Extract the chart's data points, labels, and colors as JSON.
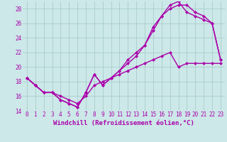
{
  "background_color": "#cce8e8",
  "grid_color": "#aacccc",
  "line_color": "#aa00aa",
  "marker": "D",
  "marker_size": 2.0,
  "line_width": 1.0,
  "xlim": [
    -0.5,
    23.5
  ],
  "ylim": [
    14,
    29
  ],
  "xticks": [
    0,
    1,
    2,
    3,
    4,
    5,
    6,
    7,
    8,
    9,
    10,
    11,
    12,
    13,
    14,
    15,
    16,
    17,
    18,
    19,
    20,
    21,
    22,
    23
  ],
  "yticks": [
    14,
    16,
    18,
    20,
    22,
    24,
    26,
    28
  ],
  "xlabel": "Windchill (Refroidissement éolien,°C)",
  "xlabel_fontsize": 6.5,
  "tick_fontsize": 5.5,
  "line1_x": [
    0,
    1,
    2,
    3,
    4,
    5,
    6,
    7,
    8,
    9,
    10,
    11,
    12,
    13,
    14,
    15,
    16,
    17,
    18,
    19,
    20,
    21,
    22,
    23
  ],
  "line1_y": [
    18.5,
    17.5,
    16.5,
    16.5,
    15.5,
    15.0,
    14.5,
    16.5,
    19.0,
    17.5,
    18.5,
    19.5,
    20.5,
    21.5,
    23.0,
    25.0,
    27.0,
    28.0,
    28.5,
    28.5,
    27.5,
    27.0,
    26.0,
    21.0
  ],
  "line2_x": [
    0,
    1,
    2,
    3,
    4,
    5,
    6,
    7,
    8,
    9,
    10,
    11,
    12,
    13,
    14,
    15,
    16,
    17,
    18,
    19,
    20,
    21,
    22,
    23
  ],
  "line2_y": [
    18.5,
    17.5,
    16.5,
    16.5,
    15.5,
    15.0,
    14.5,
    16.5,
    19.0,
    17.5,
    18.5,
    19.5,
    21.0,
    22.0,
    23.0,
    25.5,
    27.0,
    28.5,
    29.0,
    27.5,
    27.0,
    26.5,
    26.0,
    21.0
  ],
  "line3_x": [
    0,
    1,
    2,
    3,
    4,
    5,
    6,
    7,
    8,
    9,
    10,
    11,
    12,
    13,
    14,
    15,
    16,
    17,
    18,
    19,
    20,
    21,
    22,
    23
  ],
  "line3_y": [
    18.5,
    17.5,
    16.5,
    16.5,
    16.0,
    15.5,
    15.0,
    16.0,
    17.5,
    18.0,
    18.5,
    19.0,
    19.5,
    20.0,
    20.5,
    21.0,
    21.5,
    22.0,
    20.0,
    20.5,
    20.5,
    20.5,
    20.5,
    20.5
  ]
}
